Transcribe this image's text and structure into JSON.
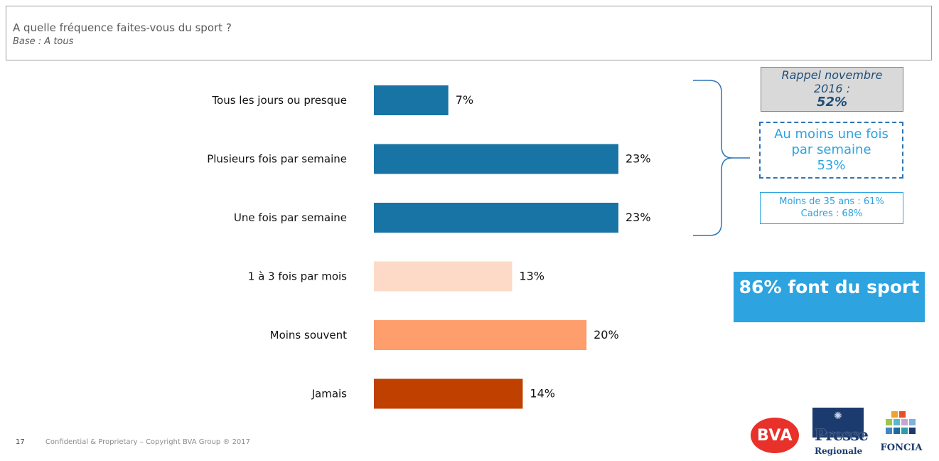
{
  "header": {
    "question": "A quelle fréquence faites-vous du sport ?",
    "base": "Base : A tous"
  },
  "chart_data": {
    "type": "bar",
    "orientation": "horizontal",
    "categories": [
      "Tous les jours ou presque",
      "Plusieurs fois par semaine",
      "Une fois par semaine",
      "1 à 3 fois par mois",
      "Moins souvent",
      "Jamais"
    ],
    "values": [
      7,
      23,
      23,
      13,
      20,
      14
    ],
    "value_labels": [
      "7%",
      "23%",
      "23%",
      "13%",
      "20%",
      "14%"
    ],
    "colors": [
      "#1874a4",
      "#1874a4",
      "#1874a4",
      "#fddac8",
      "#fd9e6c",
      "#c04000"
    ],
    "xlim": [
      0,
      23
    ],
    "grid": false,
    "title": "",
    "xlabel": "",
    "ylabel": ""
  },
  "rappel": {
    "label": "Rappel novembre 2016 :",
    "value": "52%",
    "bg_color": "#d9d9d9"
  },
  "weekly": {
    "label": "Au moins une fois par semaine",
    "value": "53%",
    "color": "#2da3e0"
  },
  "subgroups": {
    "line1": "Moins de 35 ans : 61%",
    "line2": "Cadres : 68%"
  },
  "total": {
    "text": "86% font du sport",
    "bg_color": "#2da3e0"
  },
  "footer": {
    "page_number": "17",
    "copyright": "Confidential & Proprietary – Copyright BVA Group ® 2017"
  },
  "logos": {
    "bva": "BVA",
    "presse_line1": "Presse",
    "presse_line2": "Regionale",
    "foncia": "FONCIA"
  }
}
